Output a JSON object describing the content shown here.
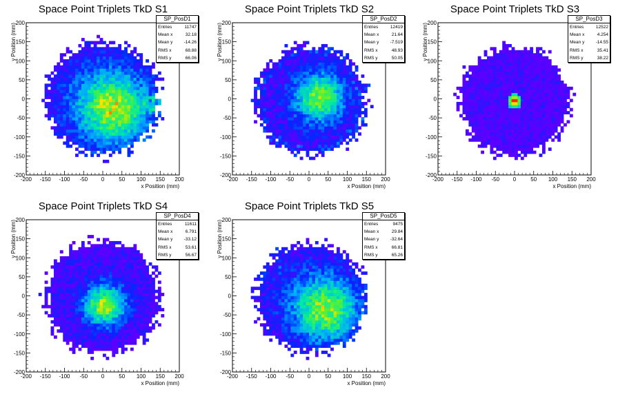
{
  "chart_data": [
    {
      "type": "heatmap",
      "title": "Space Point Triplets TkD S1",
      "xlabel": "x Position (mm)",
      "ylabel": "y Position (mm)",
      "xlim": [
        -200,
        200
      ],
      "ylim": [
        -200,
        200
      ],
      "x_ticks": [
        -200,
        -150,
        -100,
        -50,
        0,
        50,
        100,
        150,
        200
      ],
      "y_ticks": [
        -200,
        -150,
        -100,
        -50,
        0,
        50,
        100,
        150,
        200
      ],
      "stats": {
        "name": "SP_PosD1",
        "rows": [
          [
            "Entries",
            "11747"
          ],
          [
            "Mean x",
            "32.18"
          ],
          [
            "Mean y",
            "-14.26"
          ],
          [
            "RMS x",
            "68.88"
          ],
          [
            "RMS y",
            "66.06"
          ]
        ]
      },
      "mean_x": 32.18,
      "mean_y": -14.26,
      "rms_x": 68.88,
      "rms_y": 66.06
    },
    {
      "type": "heatmap",
      "title": "Space Point Triplets TkD S2",
      "xlabel": "x Position (mm)",
      "ylabel": "y Position (mm)",
      "xlim": [
        -200,
        200
      ],
      "ylim": [
        -200,
        200
      ],
      "x_ticks": [
        -200,
        -150,
        -100,
        -50,
        0,
        50,
        100,
        150,
        200
      ],
      "y_ticks": [
        -200,
        -150,
        -100,
        -50,
        0,
        50,
        100,
        150,
        200
      ],
      "stats": {
        "name": "SP_PosD2",
        "rows": [
          [
            "Entries",
            "12419"
          ],
          [
            "Mean x",
            "21.64"
          ],
          [
            "Mean y",
            "-7.519"
          ],
          [
            "RMS x",
            "48.93"
          ],
          [
            "RMS y",
            "50.05"
          ]
        ]
      },
      "mean_x": 21.64,
      "mean_y": -7.519,
      "rms_x": 48.93,
      "rms_y": 50.05
    },
    {
      "type": "heatmap",
      "title": "Space Point Triplets TkD S3",
      "xlabel": "x Position (mm)",
      "ylabel": "y Position (mm)",
      "xlim": [
        -200,
        200
      ],
      "ylim": [
        -200,
        200
      ],
      "x_ticks": [
        -200,
        -150,
        -100,
        -50,
        0,
        50,
        100,
        150,
        200
      ],
      "y_ticks": [
        -200,
        -150,
        -100,
        -50,
        0,
        50,
        100,
        150,
        200
      ],
      "stats": {
        "name": "SP_PosD3",
        "rows": [
          [
            "Entries",
            "12522"
          ],
          [
            "Mean x",
            "4.254"
          ],
          [
            "Mean y",
            "-14.55"
          ],
          [
            "RMS x",
            "35.41"
          ],
          [
            "RMS y",
            "38.22"
          ]
        ]
      },
      "mean_x": 4.254,
      "mean_y": -14.55,
      "rms_x": 35.41,
      "rms_y": 38.22
    },
    {
      "type": "heatmap",
      "title": "Space Point Triplets TkD S4",
      "xlabel": "x Position (mm)",
      "ylabel": "y Position (mm)",
      "xlim": [
        -200,
        200
      ],
      "ylim": [
        -200,
        200
      ],
      "x_ticks": [
        -200,
        -150,
        -100,
        -50,
        0,
        50,
        100,
        150,
        200
      ],
      "y_ticks": [
        -200,
        -150,
        -100,
        -50,
        0,
        50,
        100,
        150,
        200
      ],
      "stats": {
        "name": "SP_PosD4",
        "rows": [
          [
            "Entries",
            "11611"
          ],
          [
            "Mean x",
            "6.791"
          ],
          [
            "Mean y",
            "-33.12"
          ],
          [
            "RMS x",
            "53.61"
          ],
          [
            "RMS y",
            "56.67"
          ]
        ]
      },
      "mean_x": 6.791,
      "mean_y": -33.12,
      "rms_x": 53.61,
      "rms_y": 56.67
    },
    {
      "type": "heatmap",
      "title": "Space Point Triplets TkD S5",
      "xlabel": "x Position (mm)",
      "ylabel": "y Position (mm)",
      "xlim": [
        -200,
        200
      ],
      "ylim": [
        -200,
        200
      ],
      "x_ticks": [
        -200,
        -150,
        -100,
        -50,
        0,
        50,
        100,
        150,
        200
      ],
      "y_ticks": [
        -200,
        -150,
        -100,
        -50,
        0,
        50,
        100,
        150,
        200
      ],
      "stats": {
        "name": "SP_PosD5",
        "rows": [
          [
            "Entries",
            "9475"
          ],
          [
            "Mean x",
            "29.84"
          ],
          [
            "Mean y",
            "-32.64"
          ],
          [
            "RMS x",
            "66.81"
          ],
          [
            "RMS y",
            "65.26"
          ]
        ]
      },
      "mean_x": 29.84,
      "mean_y": -32.64,
      "rms_x": 66.81,
      "rms_y": 65.26
    }
  ]
}
